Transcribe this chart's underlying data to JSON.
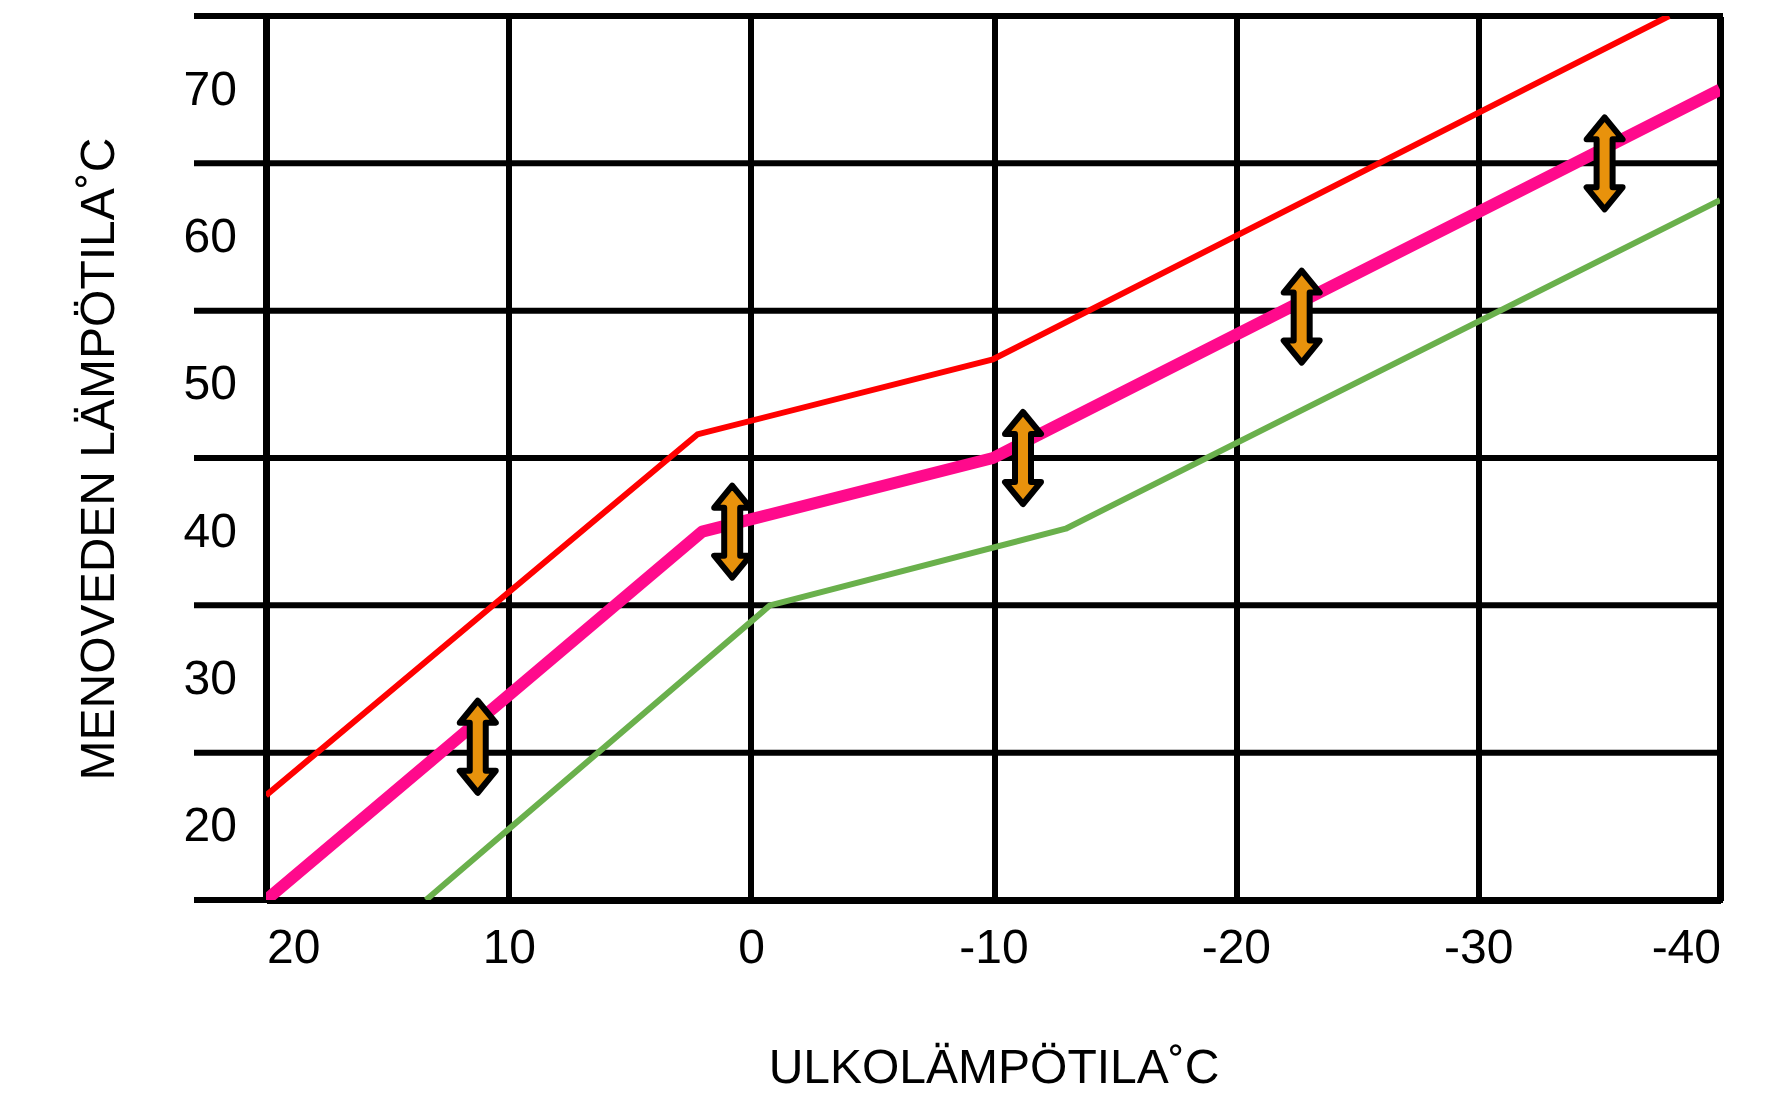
{
  "chart_data": {
    "type": "line",
    "xlabel": "ULKOLÄMPÖTILA˚C",
    "ylabel": "MENOVEDEN LÄMPÖTILA˚C",
    "xlim": [
      20,
      -40
    ],
    "xticks": [
      20,
      10,
      0,
      -10,
      -20,
      -30,
      -40
    ],
    "ylim": [
      15,
      75
    ],
    "yticks": [
      {
        "value": 15,
        "label": null
      },
      20,
      {
        "value": 25,
        "label": null
      },
      30,
      {
        "value": 35,
        "label": null
      },
      40,
      {
        "value": 45,
        "label": null
      },
      50,
      {
        "value": 55,
        "label": null
      },
      60,
      {
        "value": 65,
        "label": null
      },
      70,
      {
        "value": 75,
        "label": null
      }
    ],
    "grid": true,
    "series": [
      {
        "color": "#ff0000",
        "x": [
          20,
          2.2,
          -10,
          -37.9
        ],
        "values": [
          22.1,
          46.6,
          51.7,
          75
        ]
      },
      {
        "color": "#ff0a8c",
        "x": [
          20,
          12.5,
          2,
          -10,
          -21.5,
          -34,
          -40
        ],
        "values": [
          15,
          25.4,
          40,
          45,
          54.6,
          65,
          70
        ]
      },
      {
        "color": "#6ab04c",
        "x": [
          13.4,
          -0.8,
          -13,
          -40
        ],
        "values": [
          15,
          35,
          40.2,
          62.5
        ]
      }
    ]
  }
}
